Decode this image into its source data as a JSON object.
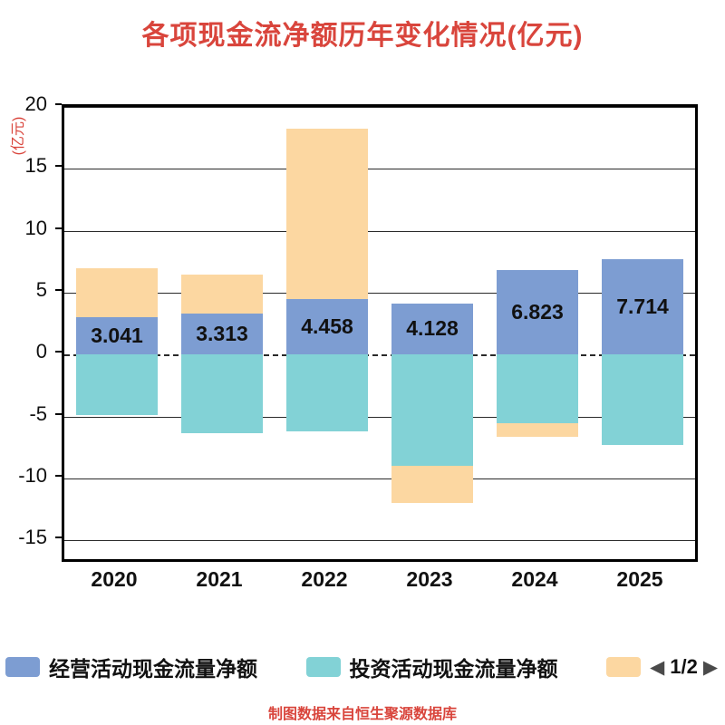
{
  "colors": {
    "red": "#D9453C",
    "operating_blue": "#7D9DD2",
    "investing_teal": "#82D2D6",
    "orange": "#FCD7A1",
    "axis": "#000000"
  },
  "chart_data": {
    "type": "bar",
    "stacked": true,
    "title": "各项现金流净额历年变化情况(亿元)",
    "ylabel": "(亿元)",
    "categories": [
      "2020",
      "2021",
      "2022",
      "2023",
      "2024",
      "2025"
    ],
    "series": [
      {
        "key": "operating",
        "name": "经营活动现金流量净额",
        "color": "#7D9DD2",
        "values": [
          3.041,
          3.313,
          4.458,
          4.128,
          6.823,
          7.714
        ],
        "labels": [
          "3.041",
          "3.313",
          "4.458",
          "4.128",
          "6.823",
          "7.714"
        ]
      },
      {
        "key": "investing",
        "name": "投资活动现金流量净额",
        "color": "#82D2D6",
        "values": [
          -4.9,
          -6.3,
          -6.2,
          -9.0,
          -5.5,
          -7.3
        ]
      },
      {
        "key": "series3",
        "name": "",
        "color": "#FCD7A1",
        "values": [
          3.96,
          3.19,
          13.8,
          -3.0,
          -1.1,
          0
        ]
      }
    ],
    "ylim": [
      -16.5,
      20
    ],
    "yticks": [
      20,
      15,
      10,
      5,
      0,
      -5,
      -10,
      -15
    ],
    "grid": true,
    "zero_line_dashed": true,
    "legend_position": "bottom"
  },
  "legend": {
    "items": [
      {
        "label": "经营活动现金流量净额",
        "color": "#7D9DD2"
      },
      {
        "label": "投资活动现金流量净额",
        "color": "#82D2D6"
      },
      {
        "label": "",
        "color": "#FCD7A1"
      }
    ],
    "pagination": "1/2",
    "prev_icon": "◀",
    "next_icon": "▶"
  },
  "footer": {
    "note": "制图数据来自恒生聚源数据库"
  }
}
